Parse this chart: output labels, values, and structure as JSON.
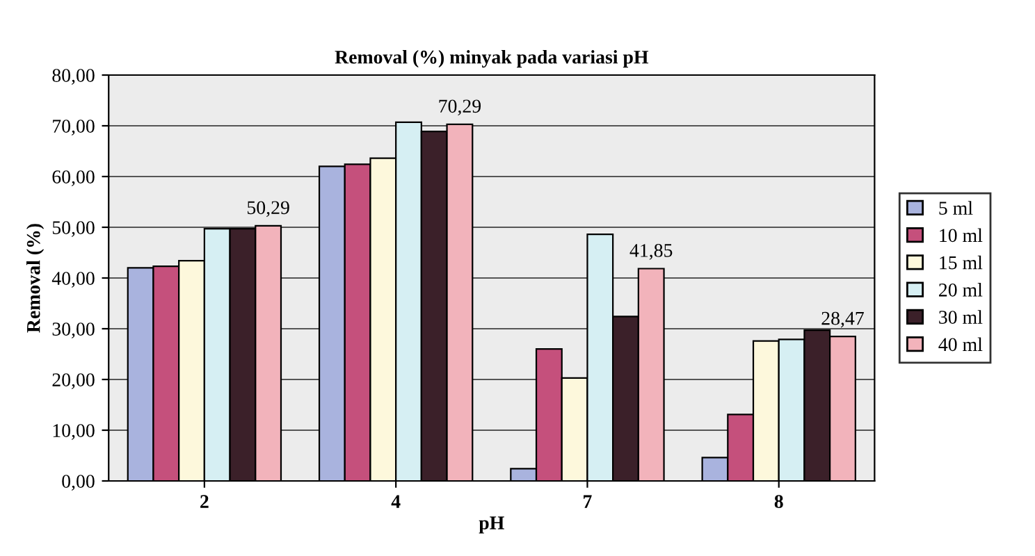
{
  "chart_data": {
    "type": "bar",
    "title": "Removal (%) minyak pada variasi pH",
    "xlabel": "pH",
    "ylabel": "Removal (%)",
    "categories": [
      "2",
      "4",
      "7",
      "8"
    ],
    "series": [
      {
        "name": "5 ml",
        "color": "#a9b3de",
        "values": [
          42.0,
          62.0,
          2.4,
          4.6
        ]
      },
      {
        "name": "10 ml",
        "color": "#c5507c",
        "values": [
          42.3,
          62.4,
          26.0,
          13.1
        ]
      },
      {
        "name": "15 ml",
        "color": "#fdf8dc",
        "values": [
          43.4,
          63.6,
          20.3,
          27.6
        ]
      },
      {
        "name": "20 ml",
        "color": "#d6eff3",
        "values": [
          49.7,
          70.7,
          48.6,
          27.9
        ]
      },
      {
        "name": "30 ml",
        "color": "#3b2029",
        "values": [
          49.7,
          68.9,
          32.4,
          29.7
        ]
      },
      {
        "name": "40 ml",
        "color": "#f2b3bb",
        "values": [
          50.29,
          70.29,
          41.85,
          28.47
        ],
        "value_labels": [
          "50,29",
          "70,29",
          "41,85",
          "28,47"
        ]
      }
    ],
    "ylim": [
      0,
      80
    ],
    "yticks": [
      {
        "value": 0,
        "label": "0,00"
      },
      {
        "value": 10,
        "label": "10,00"
      },
      {
        "value": 20,
        "label": "20,00"
      },
      {
        "value": 30,
        "label": "30,00"
      },
      {
        "value": 40,
        "label": "40,00"
      },
      {
        "value": 50,
        "label": "50,00"
      },
      {
        "value": 60,
        "label": "60,00"
      },
      {
        "value": 70,
        "label": "70,00"
      },
      {
        "value": 80,
        "label": "80,00"
      }
    ],
    "grid": "y",
    "legend": "right"
  }
}
